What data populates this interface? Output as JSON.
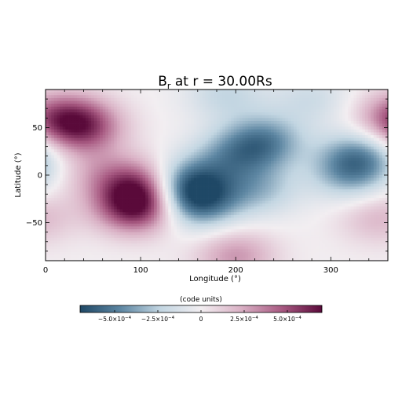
{
  "chart_data": {
    "type": "heatmap",
    "title_main": "B",
    "title_sub": "r",
    "title_rest": " at r = 30.00Rs",
    "xlabel": "Longitude (°)",
    "ylabel": "Latitude (°)",
    "xlim": [
      0,
      360
    ],
    "ylim": [
      -90,
      90
    ],
    "x_ticks": [
      0,
      100,
      200,
      300
    ],
    "x_tick_labels": [
      "0",
      "100",
      "200",
      "300"
    ],
    "y_ticks": [
      -50,
      0,
      50
    ],
    "y_tick_labels": [
      "−50",
      "0",
      "50"
    ],
    "colorbar": {
      "label": "(code units)",
      "range": [
        -0.0007,
        0.0007
      ],
      "ticks": [
        -0.0005,
        -0.00025,
        0,
        0.00025,
        0.0005
      ],
      "tick_labels": [
        {
          "mant": "−5.0×10",
          "exp": "−4"
        },
        {
          "mant": "−2.5×10",
          "exp": "−4"
        },
        {
          "mant": "0",
          "exp": ""
        },
        {
          "mant": "2.5×10",
          "exp": "−4"
        },
        {
          "mant": "5.0×10",
          "exp": "−4"
        }
      ],
      "colors": [
        "#1f4866",
        "#5d86a2",
        "#c3d6e2",
        "#f2eef1",
        "#d9b0c4",
        "#a85a82",
        "#5a0a3a"
      ]
    },
    "features": [
      {
        "lon": 95,
        "lat": -33,
        "value": 0.00065
      },
      {
        "lon": 100,
        "lat": -10,
        "value": 0.00042
      },
      {
        "lon": 55,
        "lat": 2,
        "value": 0.00018
      },
      {
        "lon": 40,
        "lat": 50,
        "value": 0.00045
      },
      {
        "lon": 20,
        "lat": 60,
        "value": 0.0003
      },
      {
        "lon": 230,
        "lat": 35,
        "value": -0.00045
      },
      {
        "lon": 195,
        "lat": 20,
        "value": -0.0003
      },
      {
        "lon": 150,
        "lat": -10,
        "value": -0.00055
      },
      {
        "lon": 162,
        "lat": -30,
        "value": -0.00045
      },
      {
        "lon": 225,
        "lat": -15,
        "value": -0.00028
      },
      {
        "lon": 330,
        "lat": 20,
        "value": -0.0004
      },
      {
        "lon": 320,
        "lat": 0,
        "value": -0.0003
      },
      {
        "lon": 190,
        "lat": 85,
        "value": -0.00022
      },
      {
        "lon": 280,
        "lat": 80,
        "value": -0.00018
      },
      {
        "lon": 200,
        "lat": -85,
        "value": 0.0003
      },
      {
        "lon": 350,
        "lat": -45,
        "value": 0.0002
      },
      {
        "lon": 355,
        "lat": 60,
        "value": 0.00015
      }
    ]
  }
}
